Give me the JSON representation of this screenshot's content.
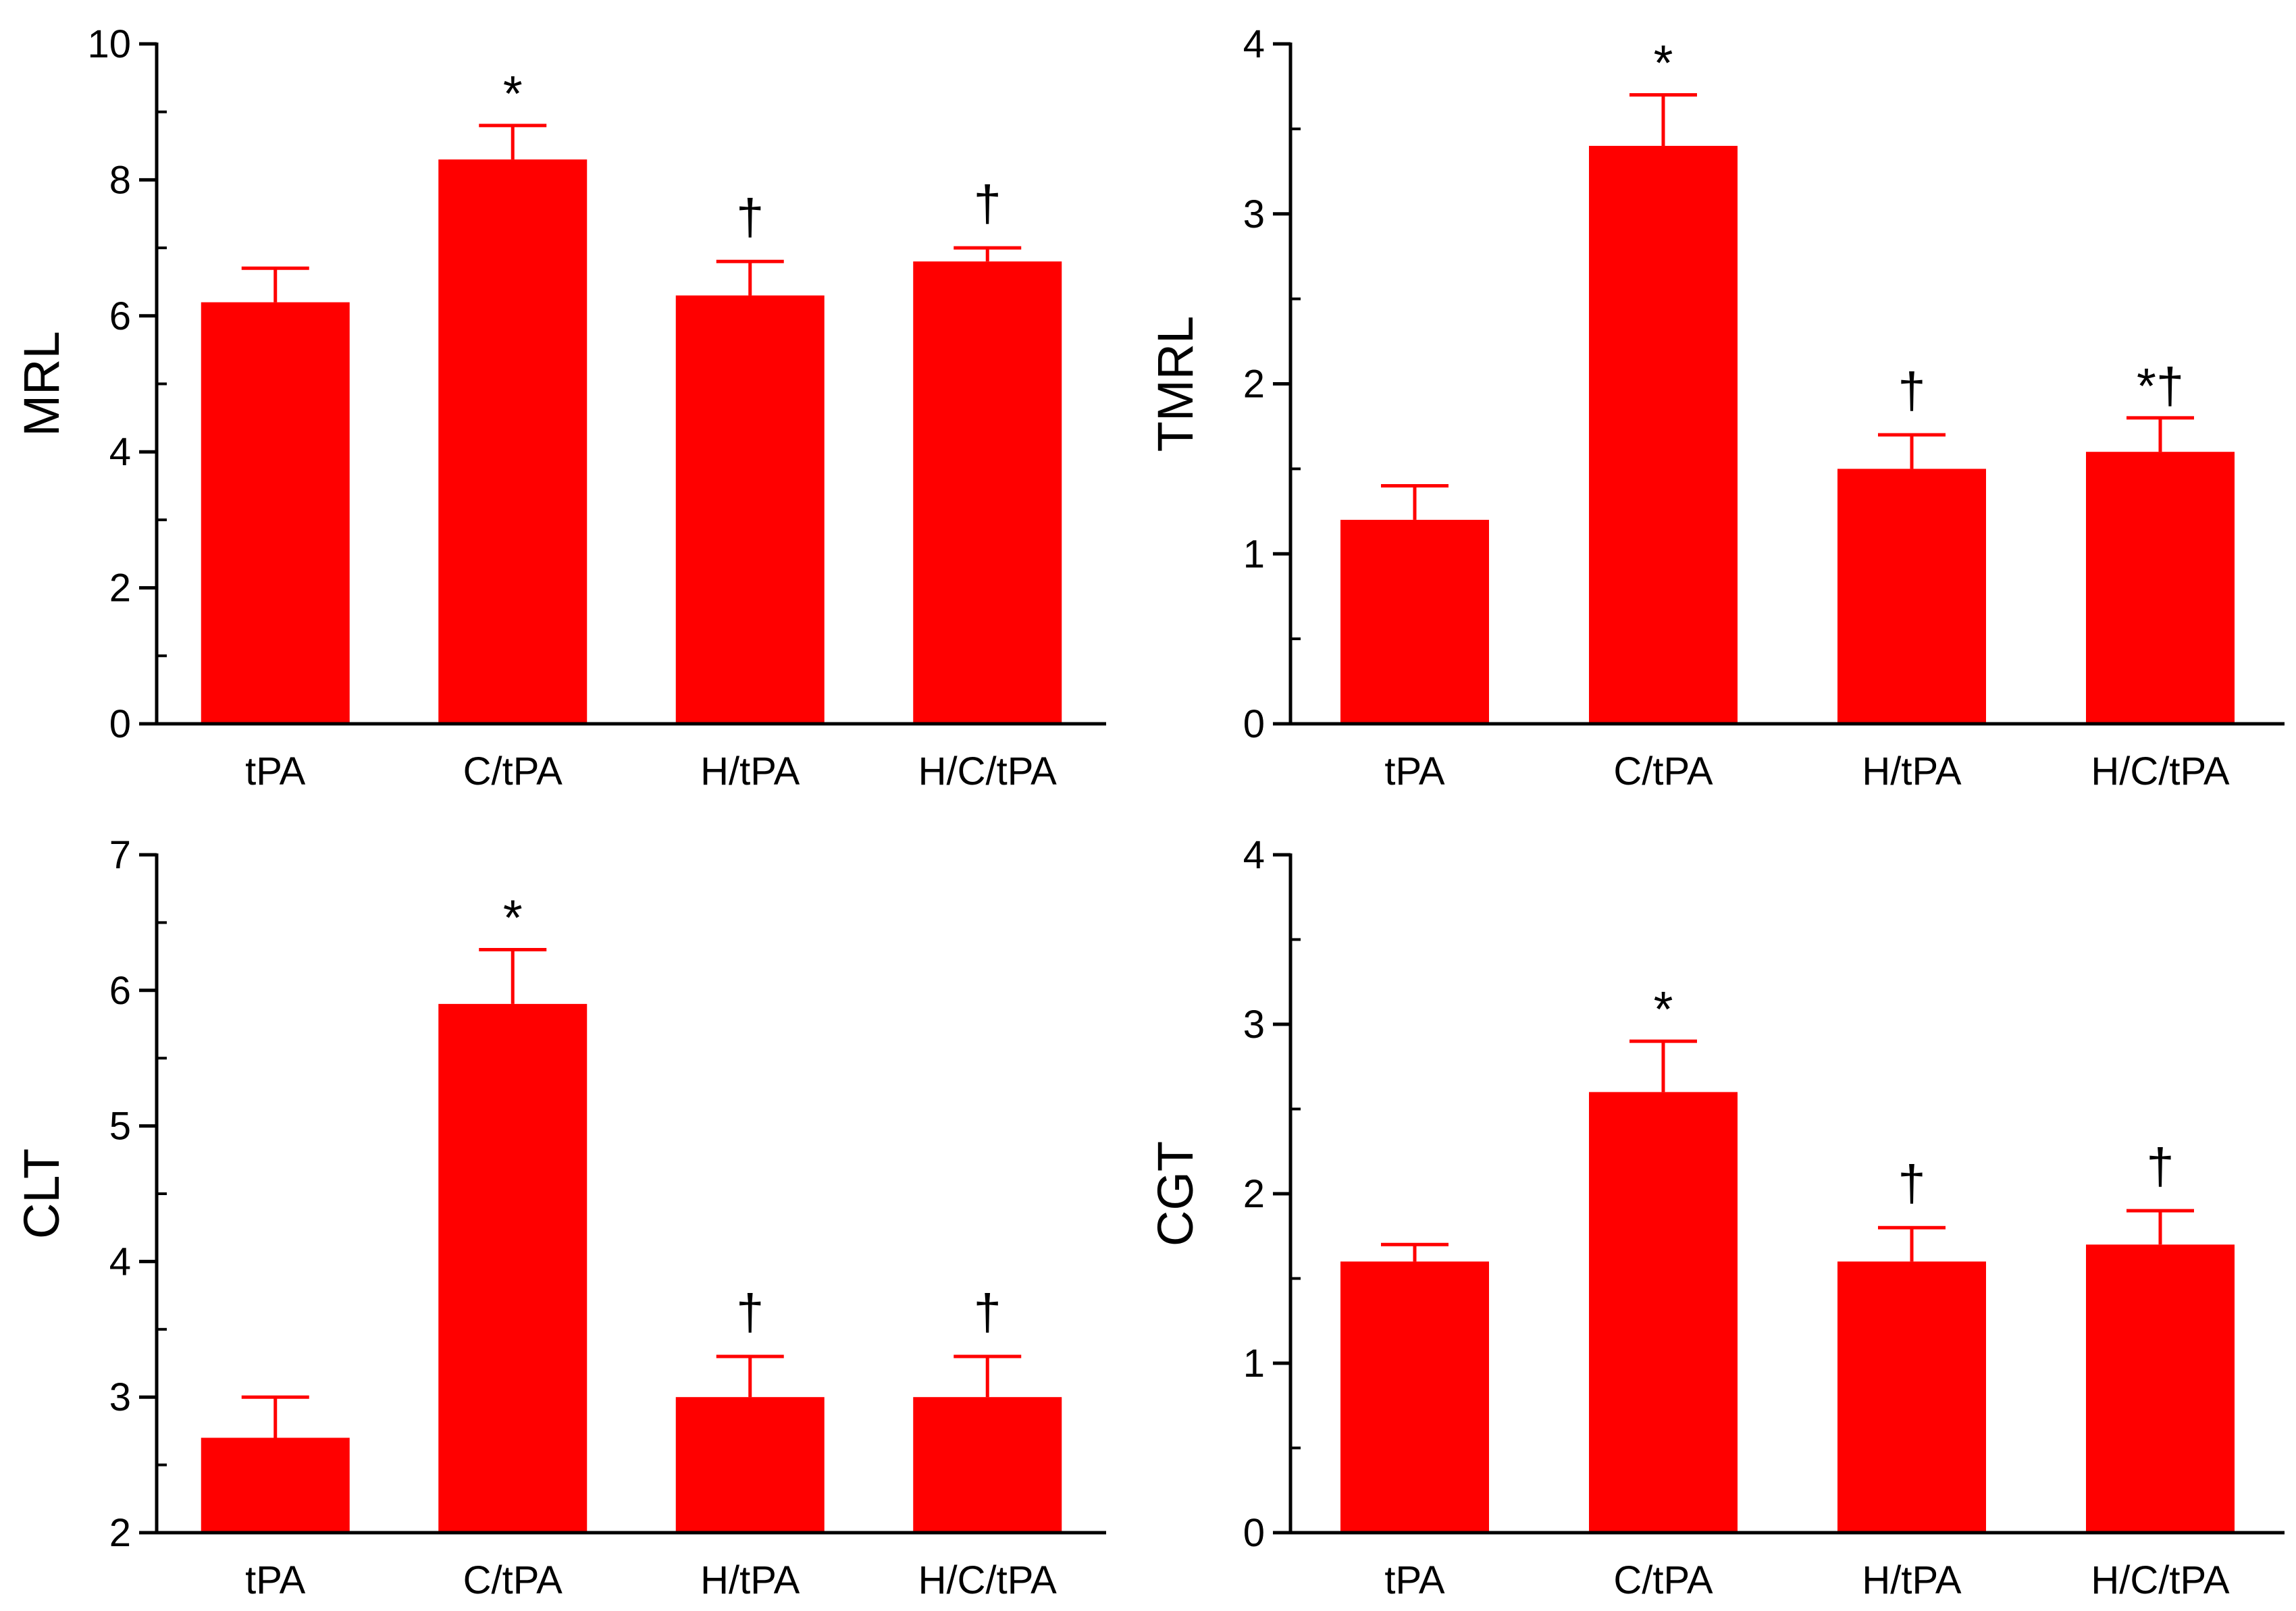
{
  "bar_color": "#ff0000",
  "axis_color": "#000000",
  "chart_data": [
    {
      "type": "bar",
      "ylabel": "MRL",
      "categories": [
        "tPA",
        "C/tPA",
        "H/tPA",
        "H/C/tPA"
      ],
      "values": [
        6.2,
        8.3,
        6.3,
        6.8
      ],
      "errors": [
        0.5,
        0.5,
        0.5,
        0.2
      ],
      "annotations": [
        "",
        "*",
        "†",
        "†"
      ],
      "ylim": [
        0,
        10
      ],
      "yticks": [
        0,
        2,
        4,
        6,
        8,
        10
      ],
      "ytick_labels": [
        "0",
        "2",
        "4",
        "6",
        "8",
        "10"
      ],
      "minor_step": 1
    },
    {
      "type": "bar",
      "ylabel": "TMRL",
      "categories": [
        "tPA",
        "C/tPA",
        "H/tPA",
        "H/C/tPA"
      ],
      "values": [
        1.2,
        3.4,
        1.5,
        1.6
      ],
      "errors": [
        0.2,
        0.3,
        0.2,
        0.2
      ],
      "annotations": [
        "",
        "*",
        "†",
        "*†"
      ],
      "ylim": [
        0,
        4
      ],
      "yticks": [
        0,
        1,
        2,
        3,
        4
      ],
      "ytick_labels": [
        "0",
        "1",
        "2",
        "3",
        "4"
      ],
      "minor_step": 0.5
    },
    {
      "type": "bar",
      "ylabel": "CLT",
      "categories": [
        "tPA",
        "C/tPA",
        "H/tPA",
        "H/C/tPA"
      ],
      "values": [
        2.7,
        5.9,
        3.0,
        3.0
      ],
      "errors": [
        0.3,
        0.4,
        0.3,
        0.3
      ],
      "annotations": [
        "",
        "*",
        "†",
        "†"
      ],
      "ylim": [
        2,
        7
      ],
      "yticks": [
        2,
        3,
        4,
        5,
        6,
        7
      ],
      "ytick_labels": [
        "2",
        "3",
        "4",
        "5",
        "6",
        "7"
      ],
      "minor_step": 0.5
    },
    {
      "type": "bar",
      "ylabel": "CGT",
      "categories": [
        "tPA",
        "C/tPA",
        "H/tPA",
        "H/C/tPA"
      ],
      "values": [
        1.6,
        2.6,
        1.6,
        1.7
      ],
      "errors": [
        0.1,
        0.3,
        0.2,
        0.2
      ],
      "annotations": [
        "",
        "*",
        "†",
        "†"
      ],
      "ylim": [
        0,
        4
      ],
      "yticks": [
        0,
        1,
        2,
        3,
        4
      ],
      "ytick_labels": [
        "0",
        "1",
        "2",
        "3",
        "4"
      ],
      "minor_step": 0.5
    }
  ]
}
